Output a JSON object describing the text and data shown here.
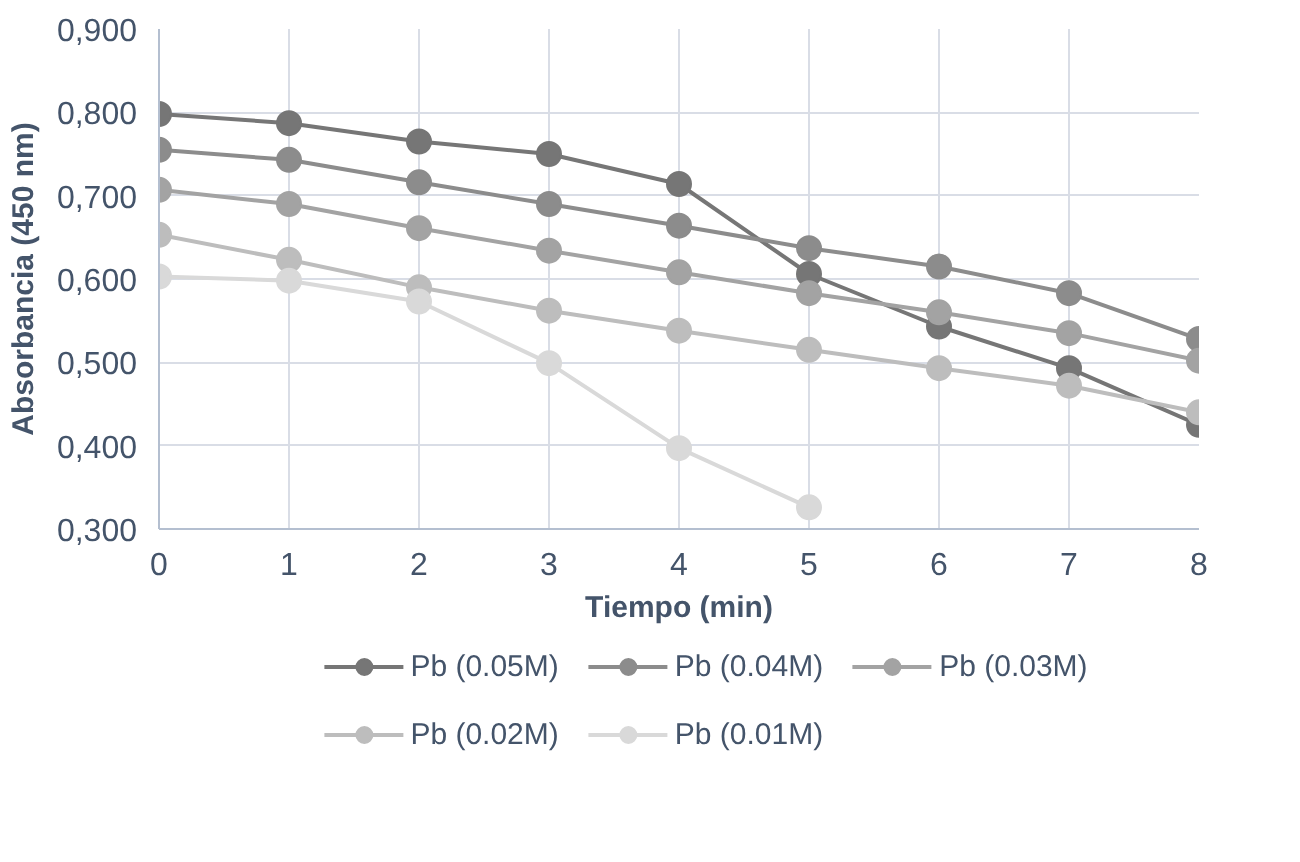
{
  "chart_data": {
    "type": "line",
    "xlabel": "Tiempo (min)",
    "ylabel": "Absorbancia (450 nm)",
    "x": [
      0,
      1,
      2,
      3,
      4,
      5,
      6,
      7,
      8
    ],
    "xlim": [
      0,
      8
    ],
    "xticks": [
      0,
      1,
      2,
      3,
      4,
      5,
      6,
      7,
      8
    ],
    "ylim": [
      0.3,
      0.9
    ],
    "yticks": [
      {
        "value": 0.3,
        "label": "0,300"
      },
      {
        "value": 0.4,
        "label": "0,400"
      },
      {
        "value": 0.5,
        "label": "0,500"
      },
      {
        "value": 0.6,
        "label": "0,600"
      },
      {
        "value": 0.7,
        "label": "0,700"
      },
      {
        "value": 0.8,
        "label": "0,800"
      },
      {
        "value": 0.9,
        "label": "0,900"
      }
    ],
    "grid": true,
    "legend": "bottom",
    "marker": "circle",
    "line_style": "solid",
    "series": [
      {
        "name": "Pb (0.05M)",
        "color": "#767676",
        "values": [
          0.798,
          0.787,
          0.765,
          0.75,
          0.714,
          0.606,
          0.543,
          0.493,
          0.425
        ]
      },
      {
        "name": "Pb (0.04M)",
        "color": "#8c8c8c",
        "values": [
          0.755,
          0.743,
          0.716,
          0.69,
          0.664,
          0.637,
          0.615,
          0.583,
          0.528
        ]
      },
      {
        "name": "Pb (0.03M)",
        "color": "#a3a3a3",
        "values": [
          0.707,
          0.69,
          0.661,
          0.634,
          0.608,
          0.583,
          0.56,
          0.535,
          0.502
        ]
      },
      {
        "name": "Pb (0.02M)",
        "color": "#bdbdbd",
        "values": [
          0.653,
          0.623,
          0.59,
          0.562,
          0.538,
          0.515,
          0.493,
          0.472,
          0.44
        ]
      },
      {
        "name": "Pb (0.01M)",
        "color": "#d9d9d9",
        "values": [
          0.603,
          0.598,
          0.573,
          0.499,
          0.397,
          0.326,
          null,
          null,
          null
        ]
      }
    ]
  }
}
